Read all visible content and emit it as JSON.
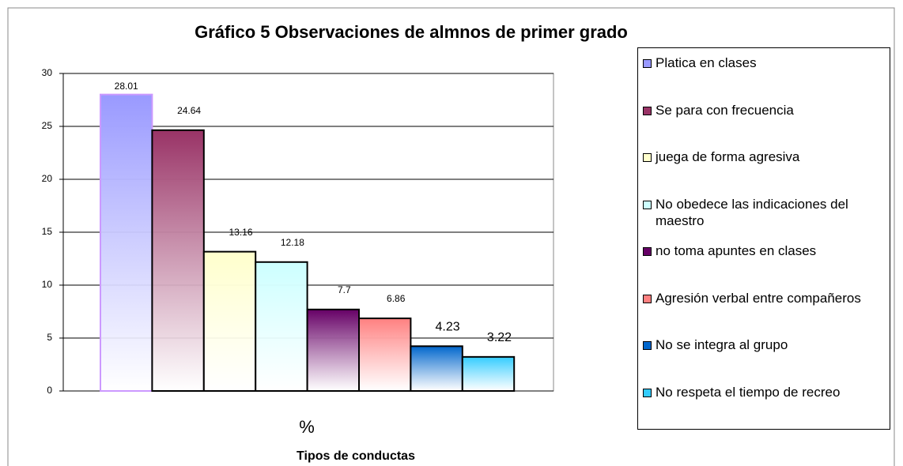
{
  "chart_data": {
    "type": "bar",
    "title": "Gráfico 5 Observaciones de almnos de primer grado",
    "x_label": "Tipos de conductas",
    "categories": [
      "%"
    ],
    "ylim": [
      0,
      30
    ],
    "yticks": [
      0,
      5,
      10,
      15,
      20,
      25,
      30
    ],
    "grid": true,
    "legend": "right",
    "series": [
      {
        "name": "Platica en clases",
        "color": "#9999ff",
        "values": [
          28.01
        ]
      },
      {
        "name": "Se para con frecuencia",
        "color": "#993366",
        "values": [
          24.64
        ]
      },
      {
        "name": "juega de forma agresiva",
        "color": "#ffffcc",
        "values": [
          13.16
        ]
      },
      {
        "name": "No obedece las indicaciones del maestro",
        "color": "#ccffff",
        "values": [
          12.18
        ]
      },
      {
        "name": "no toma apuntes en clases",
        "color": "#660066",
        "values": [
          7.7
        ]
      },
      {
        "name": "Agresión verbal entre compañeros",
        "color": "#ff8080",
        "values": [
          6.86
        ]
      },
      {
        "name": "No se integra al grupo",
        "color": "#0066cc",
        "values": [
          4.23
        ]
      },
      {
        "name": "No respeta el tiempo de recreo",
        "color": "#33ccff",
        "values": [
          3.22
        ]
      }
    ]
  }
}
